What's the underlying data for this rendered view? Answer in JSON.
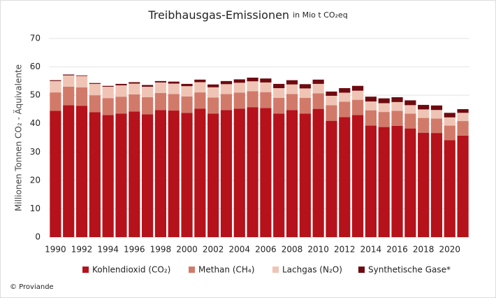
{
  "chart_data": {
    "type": "bar",
    "stacked": true,
    "title": "Treibhausgas-Emissionen",
    "subtitle": "in Mio t CO₂eq",
    "ylabel": "Millionen Tonnen CO₂ - Äquivalente",
    "source": "© Proviande",
    "categories": [
      "1990",
      null,
      "1992",
      null,
      "1994",
      null,
      "1996",
      null,
      "1998",
      null,
      "2000",
      null,
      "2002",
      null,
      "2004",
      null,
      "2006",
      null,
      "2008",
      null,
      "2010",
      null,
      "2012",
      null,
      "2014",
      null,
      "2016",
      null,
      "2018",
      null,
      "2020",
      null
    ],
    "series": [
      {
        "name": "Kohlendioxid (CO₂)",
        "color": "#b5121b",
        "values": [
          44.5,
          46.5,
          46.3,
          44,
          43,
          43.5,
          44.3,
          43.3,
          44.8,
          44.6,
          43.8,
          45.3,
          43.5,
          44.8,
          45.3,
          45.8,
          45.5,
          43.5,
          44.8,
          43.5,
          45.2,
          41,
          42.3,
          43,
          39.3,
          38.8,
          39.2,
          38.3,
          36.8,
          36.7,
          34.2,
          35.8
        ]
      },
      {
        "name": "Methan (CH₄)",
        "color": "#d27a6a",
        "values": [
          6.5,
          6.5,
          6.5,
          6,
          6,
          6,
          6,
          6,
          6,
          5.8,
          5.8,
          5.7,
          5.7,
          5.6,
          5.6,
          5.6,
          5.6,
          5.6,
          5.6,
          5.6,
          5.5,
          5.5,
          5.4,
          5.4,
          5.4,
          5.3,
          5.3,
          5.2,
          5.2,
          5.1,
          5.1,
          5.1
        ]
      },
      {
        "name": "Lachgas (N₂O)",
        "color": "#f0c4b4",
        "values": [
          4,
          4,
          4,
          4,
          4,
          4,
          3.8,
          3.7,
          3.7,
          3.7,
          3.6,
          3.6,
          3.6,
          3.5,
          3.5,
          3.5,
          3.4,
          3.4,
          3.4,
          3.3,
          3.3,
          3.3,
          3.2,
          3.2,
          3.1,
          3.1,
          3.1,
          3,
          3,
          3,
          2.9,
          2.9
        ]
      },
      {
        "name": "Synthetische Gase*",
        "color": "#6e0a10",
        "values": [
          0.3,
          0.3,
          0.2,
          0.3,
          0.3,
          0.5,
          0.5,
          0.6,
          0.5,
          0.7,
          0.8,
          0.9,
          1,
          1.1,
          1.2,
          1.3,
          1.4,
          1.5,
          1.5,
          1.5,
          1.5,
          1.5,
          1.6,
          1.7,
          1.7,
          1.7,
          1.7,
          1.7,
          1.6,
          1.6,
          1.6,
          1.3
        ]
      }
    ],
    "ylim": [
      0,
      70
    ],
    "yticks": [
      0,
      10,
      20,
      30,
      40,
      50,
      60,
      70
    ],
    "grid": true
  }
}
